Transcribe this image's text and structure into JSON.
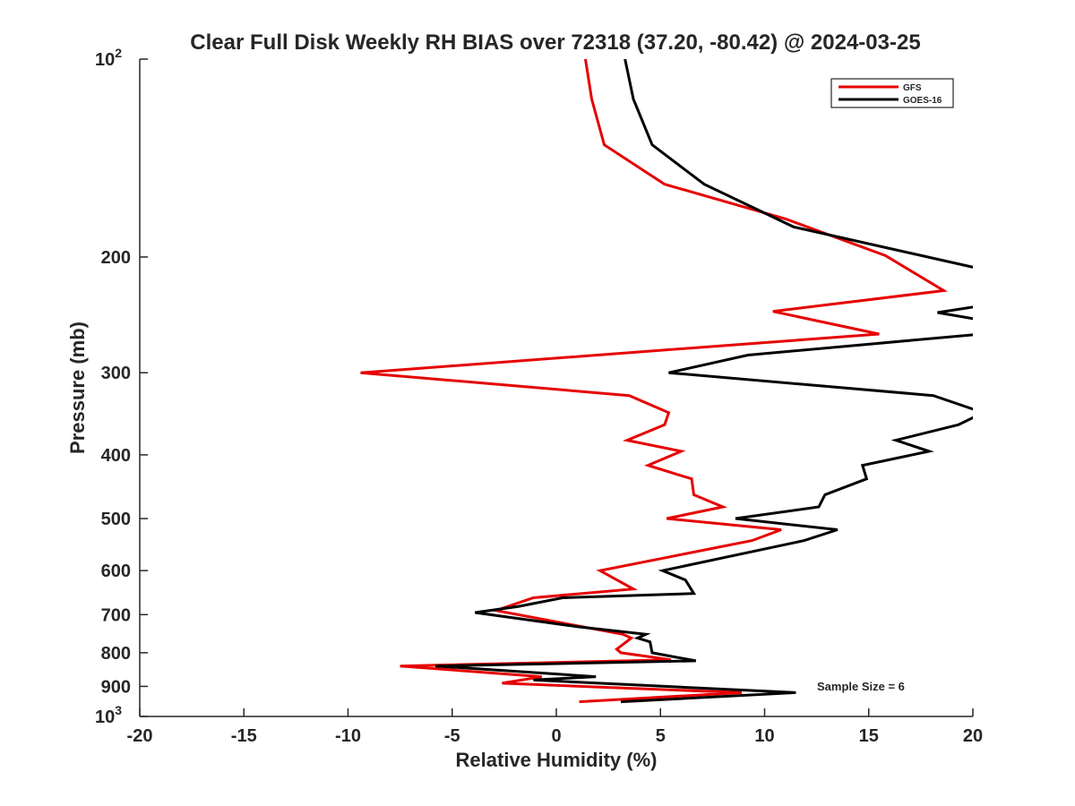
{
  "chart_data": {
    "type": "line",
    "title": "Clear Full Disk Weekly RH BIAS over 72318 (37.20, -80.42) @ 2024-03-25",
    "xlabel": "Relative Humidity (%)",
    "ylabel": "Pressure (mb)",
    "xlim": [
      -20,
      20
    ],
    "ylim": [
      100,
      1000
    ],
    "yscale": "log",
    "y_reversed": true,
    "grid": false,
    "legend_position": "top-right",
    "x_ticks": [
      "-20",
      "-15",
      "-10",
      "-5",
      "0",
      "5",
      "10",
      "15",
      "20"
    ],
    "y_ticks": [
      {
        "value": 100,
        "base": "10",
        "exp": "2"
      },
      {
        "value": 200,
        "label": "200"
      },
      {
        "value": 300,
        "label": "300"
      },
      {
        "value": 400,
        "label": "400"
      },
      {
        "value": 500,
        "label": "500"
      },
      {
        "value": 600,
        "label": "600"
      },
      {
        "value": 700,
        "label": "700"
      },
      {
        "value": 800,
        "label": "800"
      },
      {
        "value": 900,
        "label": "900"
      },
      {
        "value": 1000,
        "base": "10",
        "exp": "3"
      }
    ],
    "annotation": "Sample Size = 6",
    "series": [
      {
        "name": "GFS",
        "color": "#e60000",
        "points": [
          [
            1.4,
            100
          ],
          [
            1.7,
            115
          ],
          [
            2.3,
            135
          ],
          [
            5.2,
            155
          ],
          [
            11,
            175
          ],
          [
            15.8,
            199
          ],
          [
            18.6,
            225
          ],
          [
            10.4,
            242
          ],
          [
            15.5,
            262
          ],
          [
            -9.4,
            300
          ],
          [
            3.5,
            325
          ],
          [
            5.4,
            345
          ],
          [
            5.2,
            360
          ],
          [
            3.4,
            380
          ],
          [
            6.0,
            395
          ],
          [
            4.4,
            415
          ],
          [
            6.5,
            435
          ],
          [
            6.6,
            460
          ],
          [
            8.0,
            480
          ],
          [
            5.3,
            500
          ],
          [
            10.8,
            520
          ],
          [
            9.4,
            540
          ],
          [
            2.1,
            600
          ],
          [
            3.7,
            640
          ],
          [
            -1.1,
            660
          ],
          [
            -2.9,
            690
          ],
          [
            3.2,
            750
          ],
          [
            3.6,
            760
          ],
          [
            2.9,
            790
          ],
          [
            3.1,
            800
          ],
          [
            5.5,
            820
          ],
          [
            -7.5,
            838
          ],
          [
            -0.7,
            870
          ],
          [
            -2.6,
            890
          ],
          [
            8.9,
            920
          ],
          [
            1.1,
            950
          ]
        ]
      },
      {
        "name": "GOES-16",
        "color": "#000000",
        "points": [
          [
            3.3,
            100
          ],
          [
            3.7,
            115
          ],
          [
            4.6,
            135
          ],
          [
            7.1,
            155
          ],
          [
            11.4,
            180
          ],
          [
            20.8,
            210
          ],
          [
            20.5,
            237
          ],
          [
            18.3,
            243
          ],
          [
            20.6,
            250
          ],
          [
            20.4,
            262
          ],
          [
            9.2,
            282
          ],
          [
            5.4,
            300
          ],
          [
            18.1,
            325
          ],
          [
            20.5,
            345
          ],
          [
            19.3,
            360
          ],
          [
            16.3,
            380
          ],
          [
            17.9,
            395
          ],
          [
            14.7,
            415
          ],
          [
            14.9,
            435
          ],
          [
            12.9,
            460
          ],
          [
            12.6,
            480
          ],
          [
            8.6,
            500
          ],
          [
            13.5,
            520
          ],
          [
            11.9,
            540
          ],
          [
            5.1,
            600
          ],
          [
            6.2,
            620
          ],
          [
            6.6,
            650
          ],
          [
            0.3,
            660
          ],
          [
            -1.8,
            680
          ],
          [
            -3.9,
            695
          ],
          [
            1.0,
            730
          ],
          [
            4.3,
            750
          ],
          [
            3.9,
            760
          ],
          [
            4.5,
            770
          ],
          [
            4.6,
            800
          ],
          [
            6.7,
            823
          ],
          [
            -5.8,
            838
          ],
          [
            1.9,
            870
          ],
          [
            -1.1,
            880
          ],
          [
            11.5,
            920
          ],
          [
            3.1,
            950
          ]
        ]
      }
    ]
  }
}
